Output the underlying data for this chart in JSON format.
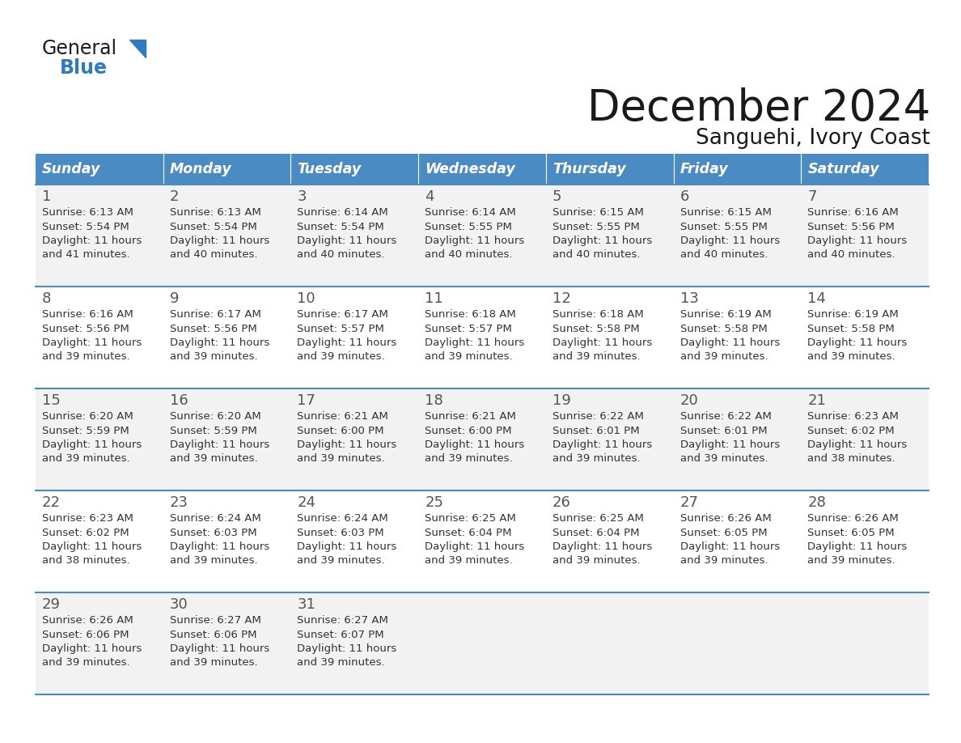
{
  "title": "December 2024",
  "subtitle": "Sanguehi, Ivory Coast",
  "header_color": "#4A8BC4",
  "header_text_color": "#FFFFFF",
  "weekdays": [
    "Sunday",
    "Monday",
    "Tuesday",
    "Wednesday",
    "Thursday",
    "Friday",
    "Saturday"
  ],
  "cell_bg_even": "#FFFFFF",
  "cell_bg_odd": "#F2F2F2",
  "line_color": "#4A8BC4",
  "day_number_color": "#555555",
  "cell_text_color": "#333333",
  "title_color": "#1A1A1A",
  "calendar_data": [
    [
      {
        "day": "1",
        "sunrise": "6:13 AM",
        "sunset": "5:54 PM",
        "daylight_line1": "Daylight: 11 hours",
        "daylight_line2": "and 41 minutes."
      },
      {
        "day": "2",
        "sunrise": "6:13 AM",
        "sunset": "5:54 PM",
        "daylight_line1": "Daylight: 11 hours",
        "daylight_line2": "and 40 minutes."
      },
      {
        "day": "3",
        "sunrise": "6:14 AM",
        "sunset": "5:54 PM",
        "daylight_line1": "Daylight: 11 hours",
        "daylight_line2": "and 40 minutes."
      },
      {
        "day": "4",
        "sunrise": "6:14 AM",
        "sunset": "5:55 PM",
        "daylight_line1": "Daylight: 11 hours",
        "daylight_line2": "and 40 minutes."
      },
      {
        "day": "5",
        "sunrise": "6:15 AM",
        "sunset": "5:55 PM",
        "daylight_line1": "Daylight: 11 hours",
        "daylight_line2": "and 40 minutes."
      },
      {
        "day": "6",
        "sunrise": "6:15 AM",
        "sunset": "5:55 PM",
        "daylight_line1": "Daylight: 11 hours",
        "daylight_line2": "and 40 minutes."
      },
      {
        "day": "7",
        "sunrise": "6:16 AM",
        "sunset": "5:56 PM",
        "daylight_line1": "Daylight: 11 hours",
        "daylight_line2": "and 40 minutes."
      }
    ],
    [
      {
        "day": "8",
        "sunrise": "6:16 AM",
        "sunset": "5:56 PM",
        "daylight_line1": "Daylight: 11 hours",
        "daylight_line2": "and 39 minutes."
      },
      {
        "day": "9",
        "sunrise": "6:17 AM",
        "sunset": "5:56 PM",
        "daylight_line1": "Daylight: 11 hours",
        "daylight_line2": "and 39 minutes."
      },
      {
        "day": "10",
        "sunrise": "6:17 AM",
        "sunset": "5:57 PM",
        "daylight_line1": "Daylight: 11 hours",
        "daylight_line2": "and 39 minutes."
      },
      {
        "day": "11",
        "sunrise": "6:18 AM",
        "sunset": "5:57 PM",
        "daylight_line1": "Daylight: 11 hours",
        "daylight_line2": "and 39 minutes."
      },
      {
        "day": "12",
        "sunrise": "6:18 AM",
        "sunset": "5:58 PM",
        "daylight_line1": "Daylight: 11 hours",
        "daylight_line2": "and 39 minutes."
      },
      {
        "day": "13",
        "sunrise": "6:19 AM",
        "sunset": "5:58 PM",
        "daylight_line1": "Daylight: 11 hours",
        "daylight_line2": "and 39 minutes."
      },
      {
        "day": "14",
        "sunrise": "6:19 AM",
        "sunset": "5:58 PM",
        "daylight_line1": "Daylight: 11 hours",
        "daylight_line2": "and 39 minutes."
      }
    ],
    [
      {
        "day": "15",
        "sunrise": "6:20 AM",
        "sunset": "5:59 PM",
        "daylight_line1": "Daylight: 11 hours",
        "daylight_line2": "and 39 minutes."
      },
      {
        "day": "16",
        "sunrise": "6:20 AM",
        "sunset": "5:59 PM",
        "daylight_line1": "Daylight: 11 hours",
        "daylight_line2": "and 39 minutes."
      },
      {
        "day": "17",
        "sunrise": "6:21 AM",
        "sunset": "6:00 PM",
        "daylight_line1": "Daylight: 11 hours",
        "daylight_line2": "and 39 minutes."
      },
      {
        "day": "18",
        "sunrise": "6:21 AM",
        "sunset": "6:00 PM",
        "daylight_line1": "Daylight: 11 hours",
        "daylight_line2": "and 39 minutes."
      },
      {
        "day": "19",
        "sunrise": "6:22 AM",
        "sunset": "6:01 PM",
        "daylight_line1": "Daylight: 11 hours",
        "daylight_line2": "and 39 minutes."
      },
      {
        "day": "20",
        "sunrise": "6:22 AM",
        "sunset": "6:01 PM",
        "daylight_line1": "Daylight: 11 hours",
        "daylight_line2": "and 39 minutes."
      },
      {
        "day": "21",
        "sunrise": "6:23 AM",
        "sunset": "6:02 PM",
        "daylight_line1": "Daylight: 11 hours",
        "daylight_line2": "and 38 minutes."
      }
    ],
    [
      {
        "day": "22",
        "sunrise": "6:23 AM",
        "sunset": "6:02 PM",
        "daylight_line1": "Daylight: 11 hours",
        "daylight_line2": "and 38 minutes."
      },
      {
        "day": "23",
        "sunrise": "6:24 AM",
        "sunset": "6:03 PM",
        "daylight_line1": "Daylight: 11 hours",
        "daylight_line2": "and 39 minutes."
      },
      {
        "day": "24",
        "sunrise": "6:24 AM",
        "sunset": "6:03 PM",
        "daylight_line1": "Daylight: 11 hours",
        "daylight_line2": "and 39 minutes."
      },
      {
        "day": "25",
        "sunrise": "6:25 AM",
        "sunset": "6:04 PM",
        "daylight_line1": "Daylight: 11 hours",
        "daylight_line2": "and 39 minutes."
      },
      {
        "day": "26",
        "sunrise": "6:25 AM",
        "sunset": "6:04 PM",
        "daylight_line1": "Daylight: 11 hours",
        "daylight_line2": "and 39 minutes."
      },
      {
        "day": "27",
        "sunrise": "6:26 AM",
        "sunset": "6:05 PM",
        "daylight_line1": "Daylight: 11 hours",
        "daylight_line2": "and 39 minutes."
      },
      {
        "day": "28",
        "sunrise": "6:26 AM",
        "sunset": "6:05 PM",
        "daylight_line1": "Daylight: 11 hours",
        "daylight_line2": "and 39 minutes."
      }
    ],
    [
      {
        "day": "29",
        "sunrise": "6:26 AM",
        "sunset": "6:06 PM",
        "daylight_line1": "Daylight: 11 hours",
        "daylight_line2": "and 39 minutes."
      },
      {
        "day": "30",
        "sunrise": "6:27 AM",
        "sunset": "6:06 PM",
        "daylight_line1": "Daylight: 11 hours",
        "daylight_line2": "and 39 minutes."
      },
      {
        "day": "31",
        "sunrise": "6:27 AM",
        "sunset": "6:07 PM",
        "daylight_line1": "Daylight: 11 hours",
        "daylight_line2": "and 39 minutes."
      },
      null,
      null,
      null,
      null
    ]
  ],
  "logo_color_general": "#1A1A1A",
  "logo_color_blue": "#2E7BC4",
  "logo_triangle_color": "#2E7BC4"
}
